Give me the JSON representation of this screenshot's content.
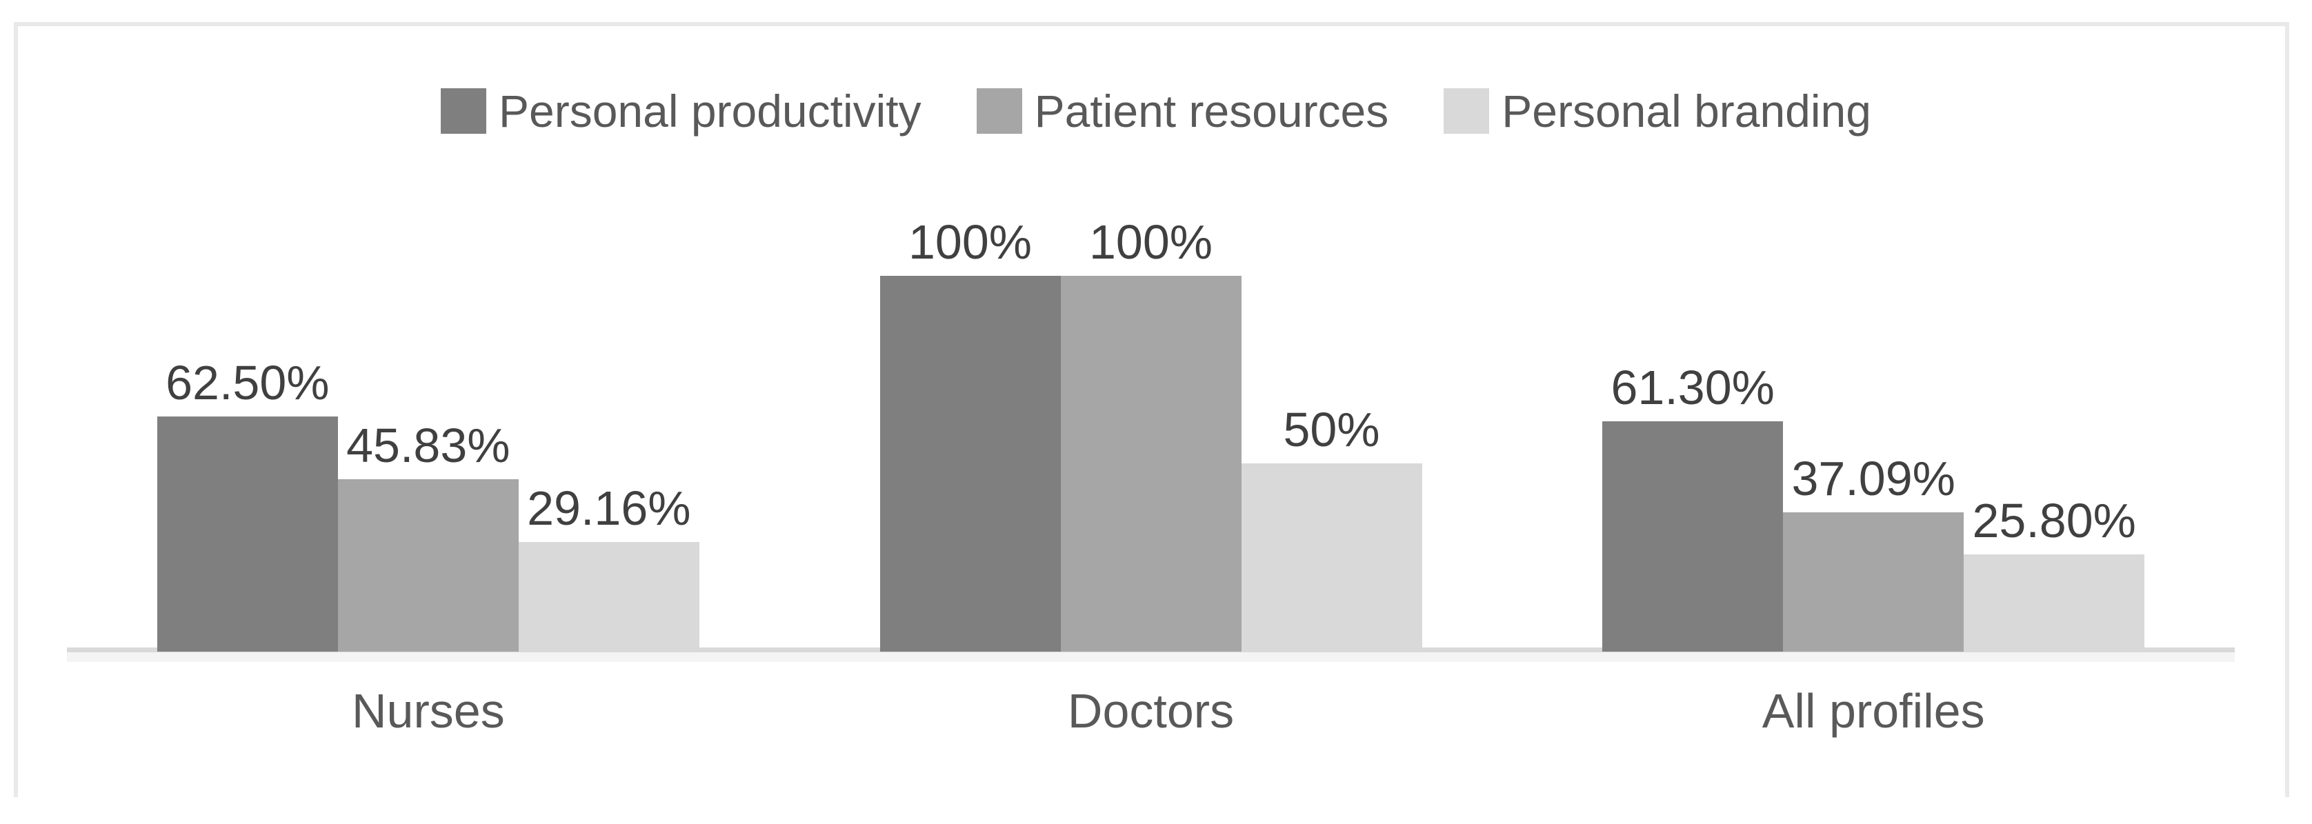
{
  "chart_data": {
    "type": "bar",
    "title": "",
    "categories": [
      "Nurses",
      "Doctors",
      "All profiles"
    ],
    "series": [
      {
        "name": "Personal productivity",
        "color": "#7f7f7f",
        "values": [
          62.5,
          100,
          61.3
        ],
        "data_labels": [
          "62.50%",
          "100%",
          "61.30%"
        ]
      },
      {
        "name": "Patient resources",
        "color": "#a6a6a6",
        "values": [
          45.83,
          100,
          37.09
        ],
        "data_labels": [
          "45.83%",
          "100%",
          "37.09%"
        ]
      },
      {
        "name": "Personal branding",
        "color": "#d9d9d9",
        "values": [
          29.16,
          50,
          25.8
        ],
        "data_labels": [
          "29.16%",
          "50%",
          "25.80%"
        ]
      }
    ],
    "ylim": [
      0,
      100
    ],
    "value_suffix": "%",
    "grid": false,
    "legend_position": "top-center",
    "y_axis_visible": false,
    "x_axis_line_visible": true
  },
  "colors": {
    "background": "#ffffff",
    "frame_border": "#e9e9e9",
    "axis_line": "#d9d9d9",
    "data_label_text": "#404040",
    "category_label_text": "#595959",
    "legend_text": "#595959",
    "series_dark": "#7f7f7f",
    "series_medium": "#a6a6a6",
    "series_light": "#d9d9d9"
  }
}
